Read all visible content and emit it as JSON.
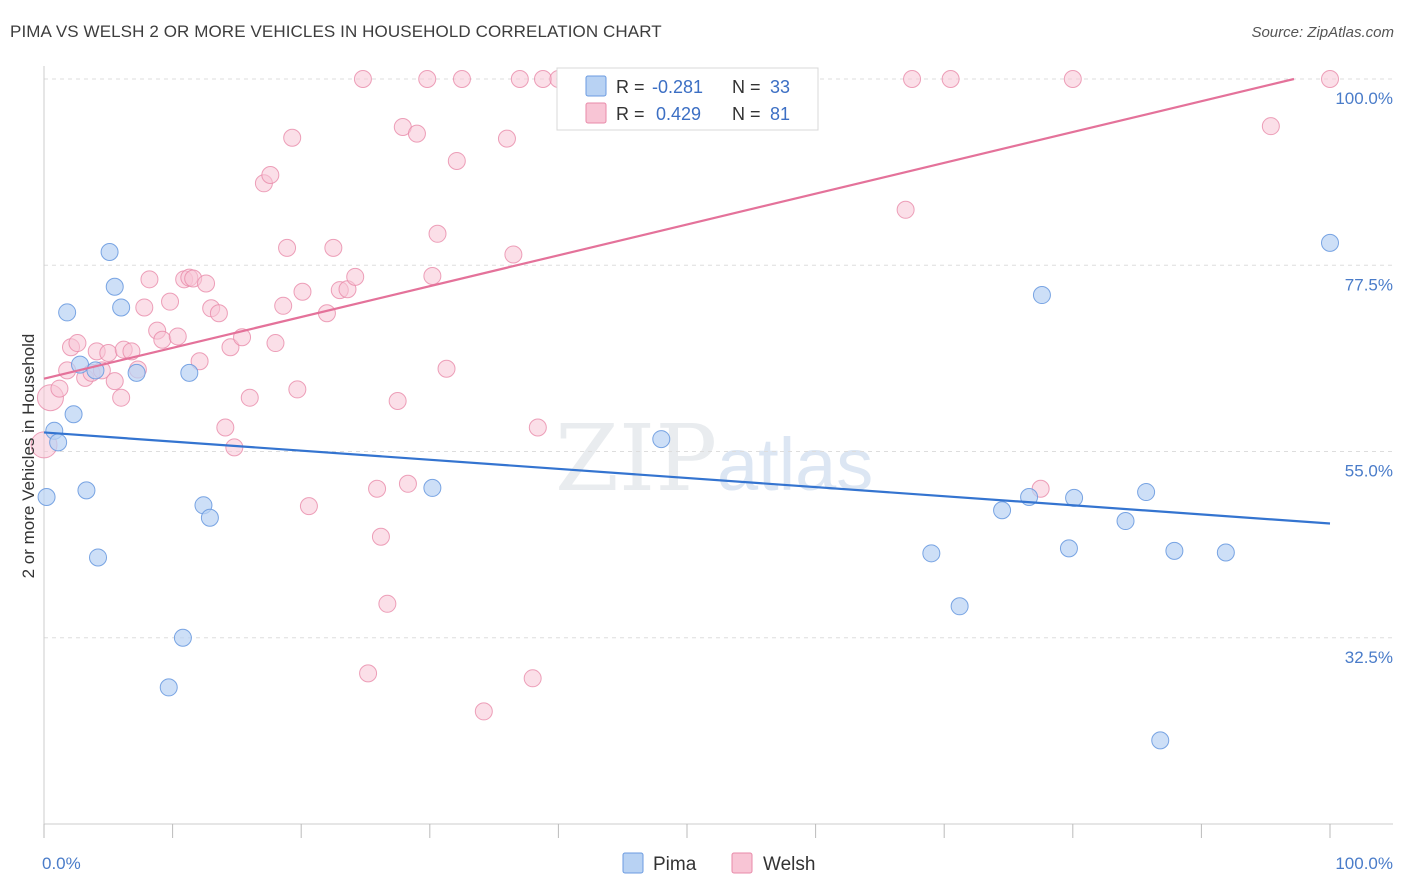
{
  "header": {
    "title": "PIMA VS WELSH 2 OR MORE VEHICLES IN HOUSEHOLD CORRELATION CHART",
    "source": "Source: ZipAtlas.com"
  },
  "watermark": {
    "zip": "ZIP",
    "atlas": "atlas"
  },
  "chart_data": {
    "type": "scatter",
    "ylabel": "2 or more Vehicles in Household",
    "xlim": [
      0,
      100
    ],
    "ylim": [
      10,
      100
    ],
    "x_tick_labels": [
      "0.0%",
      "100.0%"
    ],
    "y_ticks": [
      {
        "value": 100,
        "label": "100.0%"
      },
      {
        "value": 77.5,
        "label": "77.5%"
      },
      {
        "value": 55,
        "label": "55.0%"
      },
      {
        "value": 32.5,
        "label": "32.5%"
      }
    ],
    "grid": true,
    "legend_position": "top-center",
    "colors": {
      "pima_fill": "#b8d2f3",
      "pima_stroke": "#6b9be0",
      "pima_line": "#3474d0",
      "welsh_fill": "#f8c5d5",
      "welsh_stroke": "#e88aa9",
      "welsh_line": "#e4729a",
      "tick_text": "#4a7cc9",
      "grid": "#dddddd"
    },
    "legend": [
      {
        "r_label": "R =",
        "r_value": "-0.281",
        "n_label": "N =",
        "n_value": "33"
      },
      {
        "r_label": "R =",
        "r_value": "0.429",
        "n_label": "N =",
        "n_value": "81"
      }
    ],
    "series": [
      {
        "name": "Pima",
        "trend": {
          "x0": 0,
          "y0": 57.3,
          "x1": 100,
          "y1": 46.3
        },
        "points": [
          [
            0.2,
            49.5
          ],
          [
            0.8,
            57.5
          ],
          [
            1.1,
            56.1
          ],
          [
            1.8,
            71.8
          ],
          [
            2.3,
            59.5
          ],
          [
            2.8,
            65.5
          ],
          [
            3.3,
            50.3
          ],
          [
            4.0,
            64.8
          ],
          [
            4.2,
            42.2
          ],
          [
            5.1,
            79.1
          ],
          [
            5.5,
            74.9
          ],
          [
            6.0,
            72.4
          ],
          [
            7.2,
            64.5
          ],
          [
            9.7,
            26.5
          ],
          [
            10.8,
            32.5
          ],
          [
            11.3,
            64.5
          ],
          [
            12.4,
            48.5
          ],
          [
            12.9,
            47.0
          ],
          [
            30.2,
            50.6
          ],
          [
            48.0,
            56.5
          ],
          [
            69.0,
            42.7
          ],
          [
            71.2,
            36.3
          ],
          [
            74.5,
            47.9
          ],
          [
            76.6,
            49.5
          ],
          [
            77.6,
            73.9
          ],
          [
            79.7,
            43.3
          ],
          [
            80.1,
            49.4
          ],
          [
            84.1,
            46.6
          ],
          [
            85.7,
            50.1
          ],
          [
            86.8,
            20.1
          ],
          [
            87.9,
            43.0
          ],
          [
            91.9,
            42.8
          ],
          [
            100.0,
            80.2
          ]
        ]
      },
      {
        "name": "Welsh",
        "trend": {
          "x0": 0,
          "y0": 63.8,
          "x1": 97.2,
          "y1": 100
        }
      },
      {
        "name": "Welsh",
        "points": [
          [
            0.0,
            55.8
          ],
          [
            0.5,
            61.5
          ],
          [
            1.2,
            62.6
          ],
          [
            1.8,
            64.8
          ],
          [
            2.1,
            67.6
          ],
          [
            2.6,
            68.1
          ],
          [
            3.2,
            63.9
          ],
          [
            3.7,
            64.5
          ],
          [
            4.1,
            67.1
          ],
          [
            4.5,
            64.8
          ],
          [
            5.0,
            66.9
          ],
          [
            5.5,
            63.5
          ],
          [
            6.0,
            61.5
          ],
          [
            6.2,
            67.3
          ],
          [
            6.8,
            67.1
          ],
          [
            7.3,
            64.9
          ],
          [
            7.8,
            72.4
          ],
          [
            8.2,
            75.8
          ],
          [
            8.8,
            69.6
          ],
          [
            9.2,
            68.5
          ],
          [
            9.8,
            73.1
          ],
          [
            10.4,
            68.9
          ],
          [
            10.9,
            75.8
          ],
          [
            11.3,
            76.0
          ],
          [
            11.6,
            75.9
          ],
          [
            12.1,
            65.9
          ],
          [
            12.6,
            75.3
          ],
          [
            13.0,
            72.3
          ],
          [
            13.6,
            71.7
          ],
          [
            14.1,
            57.9
          ],
          [
            14.5,
            67.6
          ],
          [
            14.8,
            55.5
          ],
          [
            15.4,
            68.8
          ],
          [
            16.0,
            61.5
          ],
          [
            17.1,
            87.4
          ],
          [
            17.6,
            88.4
          ],
          [
            18.0,
            68.1
          ],
          [
            18.6,
            72.6
          ],
          [
            18.9,
            79.6
          ],
          [
            19.3,
            92.9
          ],
          [
            19.7,
            62.5
          ],
          [
            20.1,
            74.3
          ],
          [
            20.6,
            48.4
          ],
          [
            22.0,
            71.7
          ],
          [
            22.5,
            79.6
          ],
          [
            23.0,
            74.5
          ],
          [
            23.6,
            74.6
          ],
          [
            24.2,
            76.1
          ],
          [
            24.8,
            100.0
          ],
          [
            25.2,
            28.2
          ],
          [
            25.9,
            50.5
          ],
          [
            26.2,
            44.7
          ],
          [
            26.7,
            36.6
          ],
          [
            27.5,
            61.1
          ],
          [
            27.9,
            94.2
          ],
          [
            28.3,
            51.1
          ],
          [
            29.0,
            93.4
          ],
          [
            29.8,
            100.0
          ],
          [
            30.2,
            76.2
          ],
          [
            30.6,
            81.3
          ],
          [
            31.3,
            65.0
          ],
          [
            32.1,
            90.1
          ],
          [
            32.5,
            100.0
          ],
          [
            34.2,
            23.6
          ],
          [
            36.0,
            92.8
          ],
          [
            36.5,
            78.8
          ],
          [
            37.0,
            100.0
          ],
          [
            38.0,
            27.6
          ],
          [
            38.4,
            57.9
          ],
          [
            38.8,
            100.0
          ],
          [
            40.0,
            100.0
          ],
          [
            41.5,
            100.0
          ],
          [
            42.5,
            100.0
          ],
          [
            47.5,
            100.0
          ],
          [
            67.0,
            84.2
          ],
          [
            67.5,
            100.0
          ],
          [
            70.5,
            100.0
          ],
          [
            77.5,
            50.5
          ],
          [
            80.0,
            100.0
          ],
          [
            95.4,
            94.3
          ],
          [
            100.0,
            100.0
          ]
        ]
      }
    ]
  },
  "bottom_legend": [
    {
      "label": "Pima"
    },
    {
      "label": "Welsh"
    }
  ]
}
